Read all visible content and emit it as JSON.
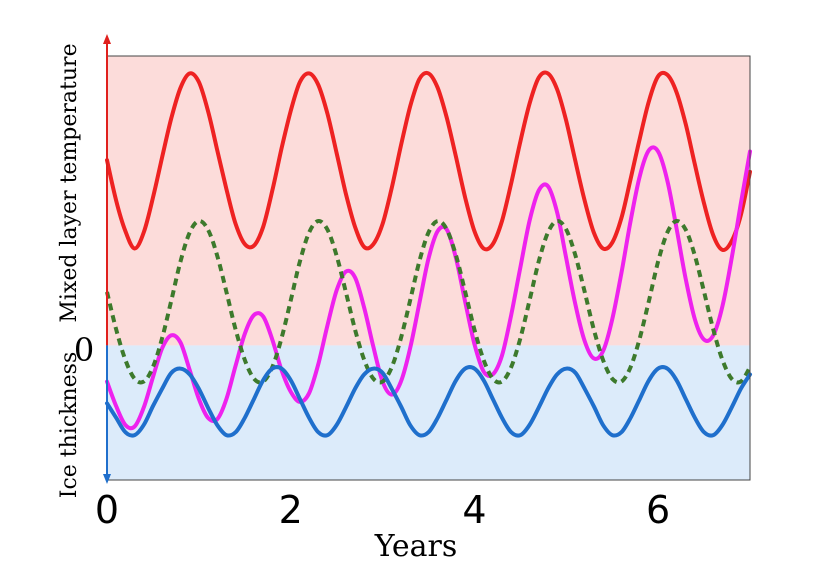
{
  "chart_data": {
    "type": "line",
    "xlabel": "Years",
    "ylabel_upper": "Mixed layer temperature",
    "ylabel_lower": "Ice thickness",
    "zero_label": "0",
    "xlim": [
      0,
      7
    ],
    "ylim": [
      -0.93,
      2.0
    ],
    "x_ticks": [
      0,
      2,
      4,
      6
    ],
    "x_tick_labels": [
      "0",
      "2",
      "4",
      "6"
    ],
    "regions": [
      {
        "label": "Mixed layer temperature",
        "from": 0,
        "to": 2.0,
        "color": "#fcdcda"
      },
      {
        "label": "Ice thickness",
        "from": -0.93,
        "to": 0,
        "color": "#dcebfa"
      }
    ],
    "grid": false,
    "x": [
      0,
      0.1,
      0.2,
      0.3,
      0.4,
      0.5,
      0.6,
      0.7,
      0.8,
      0.9,
      1.0,
      1.1,
      1.2,
      1.3,
      1.4,
      1.5,
      1.6,
      1.7,
      1.8,
      1.9,
      2.0,
      2.1,
      2.2,
      2.3,
      2.4,
      2.5,
      2.6,
      2.7,
      2.8,
      2.9,
      3.0,
      3.1,
      3.2,
      3.3,
      3.4,
      3.5,
      3.6,
      3.7,
      3.8,
      3.9,
      4.0,
      4.1,
      4.2,
      4.3,
      4.4,
      4.5,
      4.6,
      4.7,
      4.8,
      4.9,
      5.0,
      5.1,
      5.2,
      5.3,
      5.4,
      5.5,
      5.6,
      5.7,
      5.8,
      5.9,
      6.0,
      6.1,
      6.2,
      6.3,
      6.4,
      6.5,
      6.6,
      6.7,
      6.8,
      6.9,
      7.0
    ],
    "series": [
      {
        "color": "#ee2222",
        "style": "solid",
        "y": [
          1.28,
          1.0,
          0.79,
          0.67,
          0.78,
          1.02,
          1.3,
          1.57,
          1.78,
          1.88,
          1.82,
          1.62,
          1.35,
          1.08,
          0.84,
          0.7,
          0.69,
          0.82,
          1.07,
          1.36,
          1.62,
          1.82,
          1.88,
          1.8,
          1.6,
          1.33,
          1.05,
          0.82,
          0.68,
          0.7,
          0.84,
          1.09,
          1.38,
          1.65,
          1.84,
          1.88,
          1.78,
          1.57,
          1.3,
          1.02,
          0.79,
          0.67,
          0.7,
          0.86,
          1.12,
          1.41,
          1.67,
          1.85,
          1.88,
          1.77,
          1.55,
          1.27,
          1.0,
          0.78,
          0.67,
          0.71,
          0.88,
          1.15,
          1.43,
          1.69,
          1.86,
          1.87,
          1.75,
          1.53,
          1.25,
          0.98,
          0.76,
          0.66,
          0.72,
          0.9,
          1.2
        ]
      },
      {
        "color": "#ee22ee",
        "style": "solid",
        "y": [
          -0.25,
          -0.42,
          -0.55,
          -0.56,
          -0.43,
          -0.22,
          -0.02,
          0.07,
          0.02,
          -0.17,
          -0.37,
          -0.5,
          -0.51,
          -0.37,
          -0.14,
          0.08,
          0.21,
          0.2,
          0.04,
          -0.17,
          -0.32,
          -0.39,
          -0.33,
          -0.13,
          0.14,
          0.38,
          0.51,
          0.47,
          0.26,
          -0.01,
          -0.25,
          -0.34,
          -0.25,
          -0.02,
          0.29,
          0.6,
          0.79,
          0.8,
          0.6,
          0.3,
          0.01,
          -0.18,
          -0.2,
          -0.07,
          0.21,
          0.54,
          0.86,
          1.07,
          1.1,
          0.92,
          0.6,
          0.28,
          0.03,
          -0.09,
          -0.04,
          0.18,
          0.5,
          0.86,
          1.17,
          1.35,
          1.34,
          1.14,
          0.81,
          0.46,
          0.18,
          0.04,
          0.07,
          0.27,
          0.6,
          0.98,
          1.34
        ]
      },
      {
        "color": "#3d7a2c",
        "style": "dashed",
        "y": [
          0.37,
          0.11,
          -0.1,
          -0.23,
          -0.25,
          -0.15,
          0.05,
          0.31,
          0.58,
          0.78,
          0.86,
          0.8,
          0.62,
          0.37,
          0.11,
          -0.1,
          -0.23,
          -0.25,
          -0.15,
          0.05,
          0.31,
          0.58,
          0.78,
          0.86,
          0.8,
          0.62,
          0.37,
          0.11,
          -0.1,
          -0.23,
          -0.25,
          -0.15,
          0.05,
          0.31,
          0.58,
          0.78,
          0.86,
          0.8,
          0.62,
          0.37,
          0.11,
          -0.1,
          -0.23,
          -0.25,
          -0.15,
          0.05,
          0.31,
          0.58,
          0.78,
          0.86,
          0.8,
          0.62,
          0.37,
          0.11,
          -0.1,
          -0.23,
          -0.25,
          -0.15,
          0.05,
          0.31,
          0.58,
          0.78,
          0.86,
          0.8,
          0.62,
          0.37,
          0.11,
          -0.1,
          -0.23,
          -0.25,
          -0.15
        ]
      },
      {
        "color": "#1f6fcc",
        "style": "solid",
        "y": [
          -0.4,
          -0.5,
          -0.6,
          -0.62,
          -0.55,
          -0.42,
          -0.3,
          -0.19,
          -0.16,
          -0.2,
          -0.3,
          -0.43,
          -0.55,
          -0.62,
          -0.6,
          -0.5,
          -0.37,
          -0.24,
          -0.16,
          -0.16,
          -0.24,
          -0.37,
          -0.5,
          -0.6,
          -0.62,
          -0.55,
          -0.43,
          -0.3,
          -0.2,
          -0.16,
          -0.19,
          -0.3,
          -0.42,
          -0.55,
          -0.62,
          -0.6,
          -0.5,
          -0.37,
          -0.24,
          -0.16,
          -0.16,
          -0.24,
          -0.37,
          -0.5,
          -0.6,
          -0.62,
          -0.55,
          -0.43,
          -0.3,
          -0.2,
          -0.16,
          -0.19,
          -0.3,
          -0.42,
          -0.55,
          -0.62,
          -0.6,
          -0.5,
          -0.37,
          -0.24,
          -0.16,
          -0.16,
          -0.24,
          -0.37,
          -0.5,
          -0.6,
          -0.62,
          -0.55,
          -0.43,
          -0.3,
          -0.2
        ]
      }
    ]
  }
}
